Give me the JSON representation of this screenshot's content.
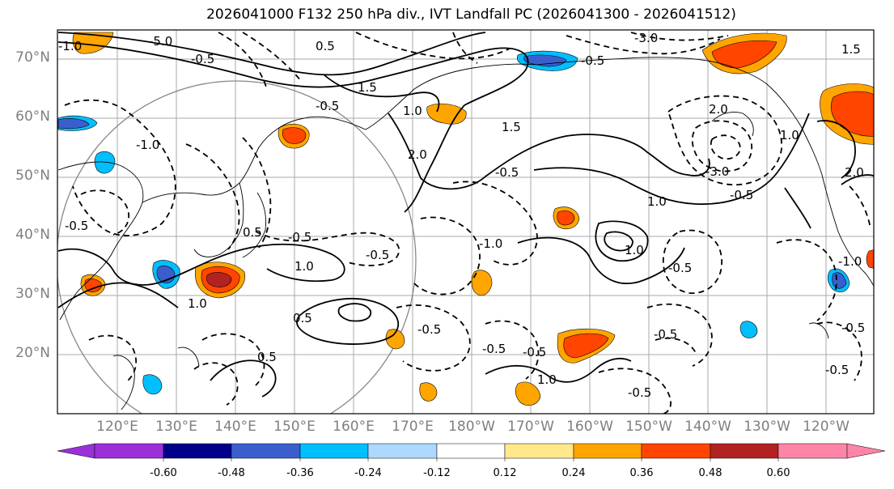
{
  "title": "2026041000 F132 250 hPa div., IVT Landfall PC (2026041300 - 2026041512)",
  "latitude_labels": [
    "70°N",
    "60°N",
    "50°N",
    "40°N",
    "30°N",
    "20°N"
  ],
  "longitude_labels": [
    "120°E",
    "130°E",
    "140°E",
    "150°E",
    "160°E",
    "170°E",
    "180°W",
    "170°W",
    "160°W",
    "150°W",
    "140°W",
    "130°W",
    "120°W"
  ],
  "colorbar": {
    "tick_labels": [
      "-0.60",
      "-0.48",
      "-0.36",
      "-0.24",
      "-0.12",
      "0.12",
      "0.24",
      "0.36",
      "0.48",
      "0.60"
    ],
    "colors": [
      "#9b30d9",
      "#00008b",
      "#3a5fcd",
      "#00bfff",
      "#add8ff",
      "#ffffff",
      "#ffe98a",
      "#ffa500",
      "#ff4500",
      "#b22222",
      "#ff85a8"
    ]
  },
  "contour_labels": [
    "-5.0",
    "-3.0",
    "-1.0",
    "-0.5",
    "0.5",
    "-0.5",
    "1.5",
    "-0.5",
    "1.0",
    "2.0",
    "-0.5",
    "1.5",
    "-3.0",
    "2.0",
    "-0.5",
    "1.0",
    "-0.5",
    "-1.0",
    "1.0",
    "-0.5",
    "1.0",
    "0.5",
    "-0.5",
    "-0.5",
    "-0.5",
    "1.0",
    "-0.5",
    "0.5",
    "-0.5",
    "-0.5",
    "-0.5",
    "0.5",
    "1.0",
    "-1.0",
    "1.5",
    "2.0",
    "-0.5",
    "1.0",
    "-1.0",
    "-0.5"
  ]
}
